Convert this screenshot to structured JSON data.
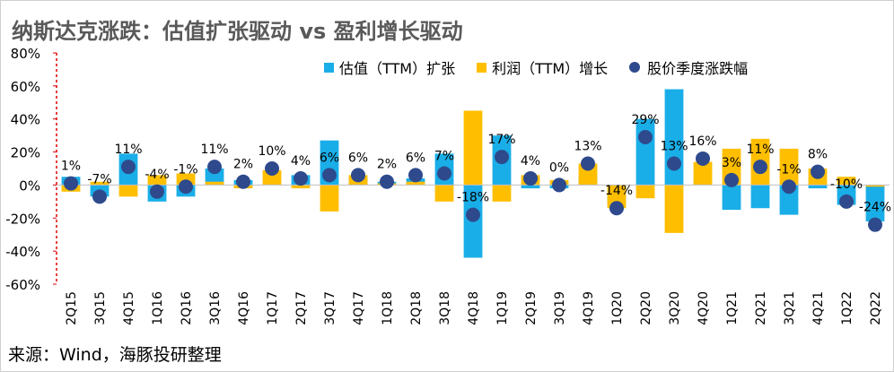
{
  "title": "纳斯达克涨跌：估值扩张驱动 vs 盈利增长驱动",
  "source": "来源：Wind，海豚投研整理",
  "colors": {
    "valuation": "#1aaee8",
    "earnings": "#ffbf00",
    "dots": "#2e4a8c",
    "axis_red": "#e00000"
  },
  "chart_data": {
    "type": "bar",
    "categories": [
      "2Q15",
      "3Q15",
      "4Q15",
      "1Q16",
      "2Q16",
      "3Q16",
      "4Q16",
      "1Q17",
      "2Q17",
      "3Q17",
      "4Q17",
      "1Q18",
      "2Q18",
      "3Q18",
      "4Q18",
      "1Q19",
      "2Q19",
      "3Q19",
      "4Q19",
      "1Q20",
      "2Q20",
      "3Q20",
      "4Q20",
      "1Q21",
      "2Q21",
      "3Q21",
      "4Q21",
      "1Q22",
      "2Q22"
    ],
    "ylim": [
      -60,
      80
    ],
    "yticks": [
      -60,
      -40,
      -20,
      0,
      20,
      40,
      60,
      80
    ],
    "ytick_labels": [
      "-60%",
      "-40%",
      "-20%",
      "0%",
      "20%",
      "40%",
      "60%",
      "80%"
    ],
    "series": [
      {
        "name": "估值（TTM）扩张",
        "kind": "bar",
        "values": [
          5,
          -7,
          19,
          -10,
          -7,
          10,
          3,
          1,
          6,
          27,
          4,
          2,
          4,
          19,
          -44,
          30,
          -2,
          -2,
          6,
          -12,
          40,
          58,
          2,
          -15,
          -14,
          -18,
          -2,
          -12,
          -22
        ]
      },
      {
        "name": "利润（TTM）增长",
        "kind": "bar",
        "values": [
          -4,
          2,
          -7,
          6,
          7,
          2,
          -2,
          9,
          -2,
          -16,
          6,
          1,
          2,
          -10,
          45,
          -10,
          6,
          3,
          13,
          -14,
          -8,
          -29,
          14,
          22,
          28,
          22,
          10,
          5,
          -1
        ]
      },
      {
        "name": "股价季度涨跌幅",
        "kind": "dot",
        "values": [
          1,
          -7,
          11,
          -4,
          -1,
          11,
          2,
          10,
          4,
          6,
          6,
          2,
          6,
          7,
          -18,
          17,
          4,
          0,
          13,
          -14,
          29,
          13,
          16,
          3,
          11,
          -1,
          8,
          -10,
          -24
        ]
      }
    ],
    "data_labels": [
      "1%",
      "-7%",
      "11%",
      "-4%",
      "-1%",
      "11%",
      "2%",
      "10%",
      "4%",
      "6%",
      "6%",
      "2%",
      "6%",
      "7%",
      "-18%",
      "17%",
      "4%",
      "0%",
      "13%",
      "-14%",
      "29%",
      "13%",
      "16%",
      "3%",
      "11%",
      "-1%",
      "8%",
      "-10%",
      "-24%"
    ]
  }
}
